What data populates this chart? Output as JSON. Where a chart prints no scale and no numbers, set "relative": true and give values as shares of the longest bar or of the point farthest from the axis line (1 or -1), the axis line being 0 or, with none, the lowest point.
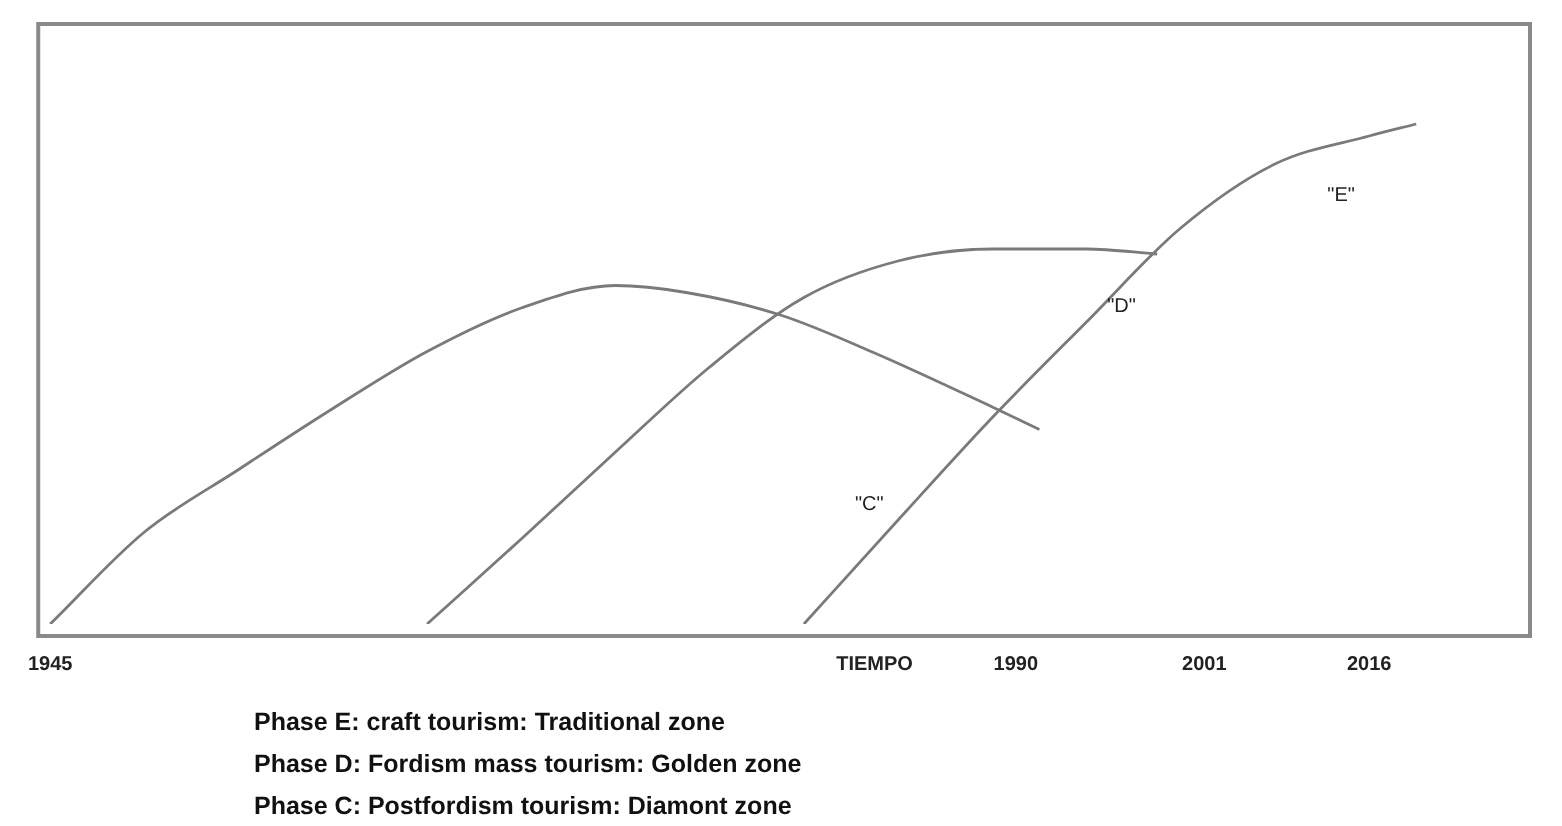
{
  "chart_data": {
    "type": "line",
    "relative": true,
    "legend": false,
    "grid": false,
    "marker": "none",
    "line_style": "solid",
    "categories": [
      "1945",
      null,
      null,
      null,
      null,
      null,
      null,
      null,
      null,
      null,
      null,
      null,
      null,
      null,
      null,
      null,
      null,
      null,
      null,
      null,
      null,
      null,
      null,
      null,
      null,
      null,
      null,
      null,
      null,
      null,
      null,
      null,
      null,
      null,
      null,
      "TIEMPO",
      null,
      null,
      null,
      null,
      null,
      "1990",
      null,
      null,
      null,
      null,
      null,
      null,
      null,
      "2001",
      null,
      null,
      null,
      null,
      null,
      null,
      "2016",
      null,
      null,
      null,
      null,
      null,
      null,
      null
    ],
    "series": [
      {
        "color": "#7a7a7a",
        "values": [
          0,
          null,
          null,
          null,
          0.184,
          null,
          null,
          null,
          0.309,
          null,
          null,
          null,
          0.431,
          null,
          null,
          null,
          0.545,
          null,
          null,
          null,
          0.632,
          null,
          null,
          null,
          0.677,
          null,
          null,
          0.663,
          null,
          null,
          null,
          0.618,
          null,
          null,
          null,
          0.542,
          null,
          null,
          null,
          null,
          0.434,
          null,
          0.389,
          null,
          null,
          null,
          null,
          null,
          null,
          null,
          null,
          null,
          null,
          null,
          null,
          null,
          null,
          null,
          null,
          null,
          null,
          null,
          null,
          null
        ]
      },
      {
        "color": "#7a7a7a",
        "values": [
          null,
          null,
          null,
          null,
          null,
          null,
          null,
          null,
          null,
          null,
          null,
          null,
          null,
          null,
          null,
          null,
          0,
          null,
          null,
          null,
          0.17,
          null,
          null,
          null,
          0.344,
          null,
          null,
          null,
          0.514,
          null,
          null,
          null,
          0.653,
          null,
          null,
          null,
          0.726,
          null,
          null,
          null,
          0.75,
          null,
          null,
          null,
          0.75,
          null,
          null,
          0.74,
          null,
          null,
          null,
          null,
          null,
          null,
          null,
          null,
          null,
          null,
          null,
          null,
          null,
          null,
          null,
          null
        ]
      },
      {
        "color": "#7a7a7a",
        "values": [
          null,
          null,
          null,
          null,
          null,
          null,
          null,
          null,
          null,
          null,
          null,
          null,
          null,
          null,
          null,
          null,
          null,
          null,
          null,
          null,
          null,
          null,
          null,
          null,
          null,
          null,
          null,
          null,
          null,
          null,
          null,
          null,
          0,
          null,
          null,
          null,
          0.208,
          null,
          null,
          null,
          0.413,
          null,
          null,
          null,
          0.604,
          null,
          null,
          null,
          0.792,
          null,
          null,
          null,
          0.92,
          null,
          null,
          null,
          0.976,
          null,
          1.0,
          null,
          null,
          null,
          null,
          null
        ]
      }
    ],
    "annotations": [
      "\"C\"",
      "\"D\"",
      "\"E\"",
      "Phase E: craft tourism: Traditional zone",
      "Phase D: Fordism mass tourism: Golden zone",
      "Phase C: Postfordism tourism: Diamont zone"
    ]
  }
}
